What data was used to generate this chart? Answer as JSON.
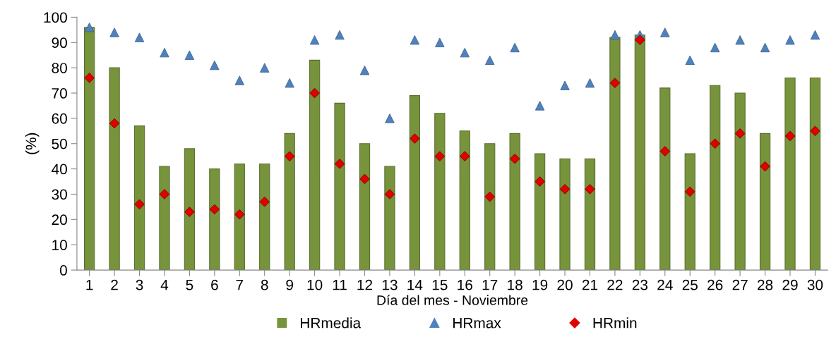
{
  "chart_data": {
    "type": "bar",
    "xlabel": "Día del mes - Noviembre",
    "ylabel": "(%)",
    "categories": [
      "1",
      "2",
      "3",
      "4",
      "5",
      "6",
      "7",
      "8",
      "9",
      "10",
      "11",
      "12",
      "13",
      "14",
      "15",
      "16",
      "17",
      "18",
      "19",
      "20",
      "21",
      "22",
      "23",
      "24",
      "25",
      "26",
      "27",
      "28",
      "29",
      "30"
    ],
    "series": [
      {
        "name": "HRmedia",
        "color": "#77933c",
        "values": [
          96,
          80,
          57,
          41,
          48,
          40,
          42,
          42,
          54,
          83,
          66,
          50,
          41,
          69,
          62,
          55,
          50,
          54,
          46,
          44,
          44,
          92,
          93,
          72,
          46,
          73,
          70,
          54,
          76,
          76
        ]
      },
      {
        "name": "HRmax",
        "type": "scatter",
        "marker": "triangle",
        "color": "#4f81bd",
        "values": [
          96,
          94,
          92,
          86,
          85,
          81,
          75,
          80,
          74,
          91,
          93,
          79,
          60,
          91,
          90,
          86,
          83,
          88,
          65,
          73,
          74,
          93,
          93,
          94,
          83,
          88,
          91,
          88,
          91,
          93
        ]
      },
      {
        "name": "HRmin",
        "type": "scatter",
        "marker": "diamond",
        "color": "#e00000",
        "values": [
          76,
          58,
          26,
          30,
          23,
          24,
          22,
          27,
          45,
          70,
          42,
          36,
          30,
          52,
          45,
          45,
          29,
          44,
          35,
          32,
          32,
          74,
          91,
          47,
          31,
          50,
          54,
          41,
          53,
          55
        ]
      }
    ],
    "ylim": [
      0,
      100
    ],
    "yticks": [
      0,
      10,
      20,
      30,
      40,
      50,
      60,
      70,
      80,
      90,
      100
    ],
    "grid": false,
    "legend": "bottom"
  }
}
